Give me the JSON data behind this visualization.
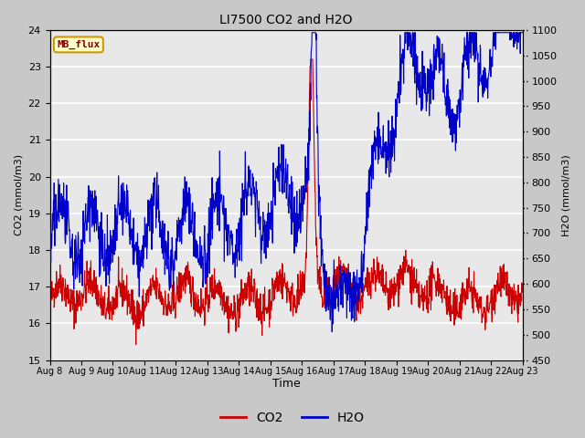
{
  "title": "LI7500 CO2 and H2O",
  "xlabel": "Time",
  "ylabel_left": "CO2 (mmol/m3)",
  "ylabel_right": "H2O (mmol/m3)",
  "ylim_left": [
    15.0,
    24.0
  ],
  "ylim_right": [
    450,
    1100
  ],
  "yticks_left": [
    15.0,
    16.0,
    17.0,
    18.0,
    19.0,
    20.0,
    21.0,
    22.0,
    23.0,
    24.0
  ],
  "yticks_right": [
    450,
    500,
    550,
    600,
    650,
    700,
    750,
    800,
    850,
    900,
    950,
    1000,
    1050,
    1100
  ],
  "xtick_labels": [
    "Aug 8",
    "Aug 9",
    "Aug 10",
    "Aug 11",
    "Aug 12",
    "Aug 13",
    "Aug 14",
    "Aug 15",
    "Aug 16",
    "Aug 17",
    "Aug 18",
    "Aug 19",
    "Aug 20",
    "Aug 21",
    "Aug 22",
    "Aug 23"
  ],
  "co2_color": "#cc0000",
  "h2o_color": "#0000cc",
  "annotation_text": "MB_flux",
  "annotation_bg": "#ffffcc",
  "annotation_border": "#cc9900",
  "annotation_textcolor": "#880000",
  "fig_bg": "#c8c8c8",
  "plot_bg": "#e8e8e8",
  "legend_co2": "CO2",
  "legend_h2o": "H2O",
  "seed": 42,
  "n_days": 15,
  "pts_per_day": 96
}
